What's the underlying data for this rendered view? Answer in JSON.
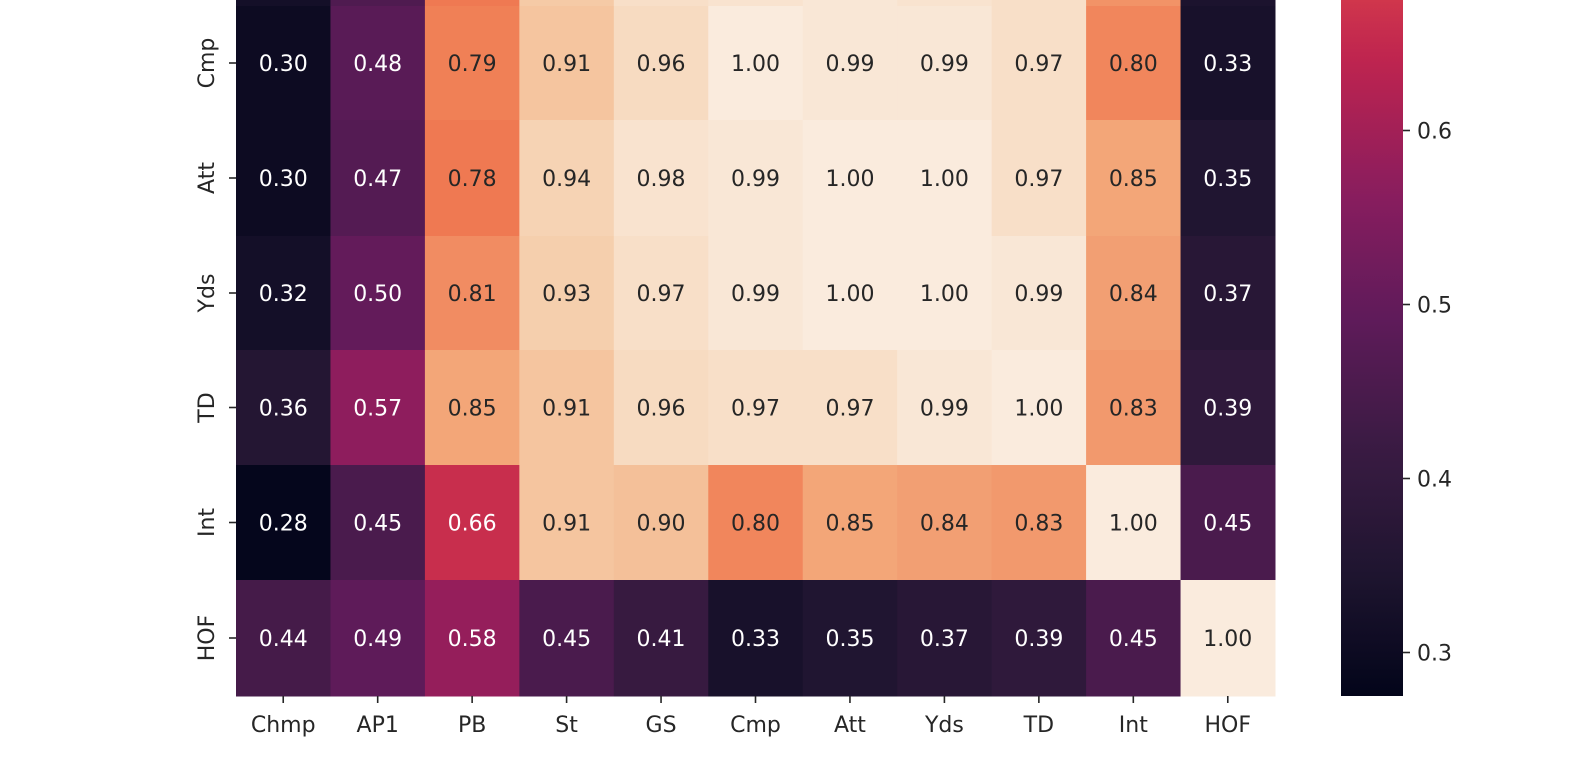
{
  "chart_data": {
    "type": "heatmap",
    "title": "",
    "x_labels": [
      "Chmp",
      "AP1",
      "PB",
      "St",
      "GS",
      "Cmp",
      "Att",
      "Yds",
      "TD",
      "Int",
      "HOF"
    ],
    "y_labels": [
      "Cmp",
      "Att",
      "Yds",
      "TD",
      "Int",
      "HOF"
    ],
    "values": [
      [
        0.3,
        0.48,
        0.79,
        0.91,
        0.96,
        1.0,
        0.99,
        0.99,
        0.97,
        0.8,
        0.33
      ],
      [
        0.3,
        0.47,
        0.78,
        0.94,
        0.98,
        0.99,
        1.0,
        1.0,
        0.97,
        0.85,
        0.35
      ],
      [
        0.32,
        0.5,
        0.81,
        0.93,
        0.97,
        0.99,
        1.0,
        1.0,
        0.99,
        0.84,
        0.37
      ],
      [
        0.36,
        0.57,
        0.85,
        0.91,
        0.96,
        0.97,
        0.97,
        0.99,
        1.0,
        0.83,
        0.39
      ],
      [
        0.28,
        0.45,
        0.66,
        0.91,
        0.9,
        0.8,
        0.85,
        0.84,
        0.83,
        1.0,
        0.45
      ],
      [
        0.44,
        0.49,
        0.58,
        0.45,
        0.41,
        0.33,
        0.35,
        0.37,
        0.39,
        0.45,
        1.0
      ]
    ],
    "labels": [
      [
        "0.30",
        "0.48",
        "0.79",
        "0.91",
        "0.96",
        "1.00",
        "0.99",
        "0.99",
        "0.97",
        "0.80",
        "0.33"
      ],
      [
        "0.30",
        "0.47",
        "0.78",
        "0.94",
        "0.98",
        "0.99",
        "1.00",
        "1.00",
        "0.97",
        "0.85",
        "0.35"
      ],
      [
        "0.32",
        "0.50",
        "0.81",
        "0.93",
        "0.97",
        "0.99",
        "1.00",
        "1.00",
        "0.99",
        "0.84",
        "0.37"
      ],
      [
        "0.36",
        "0.57",
        "0.85",
        "0.91",
        "0.96",
        "0.97",
        "0.97",
        "0.99",
        "1.00",
        "0.83",
        "0.39"
      ],
      [
        "0.28",
        "0.45",
        "0.66",
        "0.91",
        "0.90",
        "0.80",
        "0.85",
        "0.84",
        "0.83",
        "1.00",
        "0.45"
      ],
      [
        "0.44",
        "0.49",
        "0.58",
        "0.45",
        "0.41",
        "0.33",
        "0.35",
        "0.37",
        "0.39",
        "0.45",
        "1.00"
      ]
    ],
    "colorbar": {
      "colormap": "rocket",
      "ticks": [
        0.3,
        0.4,
        0.5,
        0.6
      ],
      "tick_labels": [
        "0.3",
        "0.4",
        "0.5",
        "0.6"
      ],
      "visible_range": [
        0.275,
        0.675
      ]
    },
    "colors": {
      "high": "#faebdd",
      "low": "#03051a",
      "text_dark": "#262626",
      "text_light": "#ffffff"
    }
  }
}
